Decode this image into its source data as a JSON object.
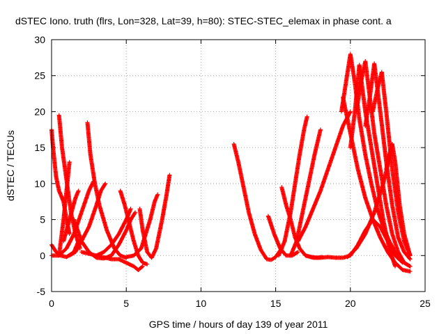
{
  "chart_data": {
    "type": "scatter",
    "title": "dSTEC Iono. truth (flrs, Lon=328, Lat=39, h=80): STEC-STEC_elemax in phase cont. a",
    "xlabel": "GPS time / hours of day 139 of year 2011",
    "ylabel": "dSTEC  / TECUs",
    "xlim": [
      0,
      25
    ],
    "ylim": [
      -5,
      30
    ],
    "xticks": [
      0,
      5,
      10,
      15,
      20,
      25
    ],
    "yticks": [
      -5,
      0,
      5,
      10,
      15,
      20,
      25,
      30
    ],
    "grid": true,
    "marker": "+",
    "color": "#ff0000",
    "series": [
      {
        "x": [
          0,
          0.1,
          0.3,
          0.5,
          0.8,
          1.0,
          1.2
        ],
        "y": [
          17.5,
          15,
          11,
          9,
          7.5,
          5,
          3
        ]
      },
      {
        "x": [
          0.0,
          0.3,
          0.6,
          1.0,
          1.5,
          1.8
        ],
        "y": [
          1.5,
          0.5,
          0,
          -0.2,
          0.5,
          2
        ]
      },
      {
        "x": [
          0.5,
          0.7,
          0.9,
          1.1,
          1.3,
          1.6,
          1.9
        ],
        "y": [
          19.5,
          15,
          12,
          9,
          6,
          3,
          1
        ]
      },
      {
        "x": [
          0.0,
          0.5,
          1.0,
          1.5,
          2.0,
          2.5,
          2.8
        ],
        "y": [
          0,
          0,
          1,
          3,
          6,
          9,
          10.3
        ]
      },
      {
        "x": [
          0.5,
          0.8,
          1.1,
          1.2
        ],
        "y": [
          0,
          5,
          11,
          13
        ]
      },
      {
        "x": [
          0.8,
          1.2,
          1.6,
          1.8
        ],
        "y": [
          2,
          5,
          8,
          9
        ]
      },
      {
        "x": [
          2.4,
          2.6,
          2.9,
          3.2,
          3.7,
          4.2,
          4.6,
          5.0
        ],
        "y": [
          18.5,
          14,
          10,
          7,
          3.5,
          1,
          0,
          -0.3
        ]
      },
      {
        "x": [
          1.2,
          1.6,
          2.0,
          2.5,
          3.0,
          3.3,
          3.6
        ],
        "y": [
          0,
          0.5,
          2,
          4,
          7,
          9,
          10
        ]
      },
      {
        "x": [
          1.5,
          2.0,
          2.5,
          3.0,
          3.5,
          4.0,
          4.5,
          5.0,
          5.3,
          5.6
        ],
        "y": [
          5,
          2,
          0.5,
          -0.3,
          -0.4,
          0,
          1.5,
          3.5,
          5,
          6
        ]
      },
      {
        "x": [
          4.6,
          4.9,
          5.2,
          5.5,
          5.8,
          6.1,
          6.4
        ],
        "y": [
          9,
          7,
          4.5,
          2,
          0,
          -1,
          -1.2
        ]
      },
      {
        "x": [
          3.0,
          3.5,
          4.0,
          4.5,
          5.0,
          5.3
        ],
        "y": [
          0,
          0.5,
          1.5,
          3,
          5,
          6.5
        ]
      },
      {
        "x": [
          2.0,
          3.0,
          4.0,
          4.5,
          5.0,
          5.5,
          5.8,
          6.1
        ],
        "y": [
          0.5,
          0,
          -0.5,
          -0.5,
          -1,
          -1.5,
          -2,
          -1.5
        ]
      },
      {
        "x": [
          5.0,
          5.5,
          6.0,
          6.3,
          6.6,
          6.9,
          7.1
        ],
        "y": [
          -0.2,
          0,
          1,
          3,
          5,
          7.5,
          8.5
        ]
      },
      {
        "x": [
          5.9,
          6.1,
          6.4,
          6.7,
          7.0,
          7.4,
          7.7,
          7.9
        ],
        "y": [
          6.5,
          3.5,
          0.5,
          -0.3,
          1,
          5,
          8.5,
          11.2
        ]
      },
      {
        "x": [
          12.2,
          12.5,
          12.8,
          13.2,
          13.6,
          14.0,
          14.4,
          14.7,
          15.0,
          15.4
        ],
        "y": [
          15.5,
          13,
          10,
          6,
          3,
          0.8,
          -0.5,
          -0.6,
          -0.2,
          1
        ]
      },
      {
        "x": [
          14.5,
          14.9,
          15.3,
          15.7,
          16.1,
          16.5
        ],
        "y": [
          5.5,
          3,
          1,
          0,
          0,
          0.5
        ]
      },
      {
        "x": [
          15.4,
          15.7,
          16.0,
          16.3,
          16.6,
          17.0,
          17.4,
          17.8,
          18.1
        ],
        "y": [
          9.5,
          7,
          5,
          2.5,
          1,
          0,
          -0.2,
          -0.3,
          -0.2
        ]
      },
      {
        "x": [
          15.2,
          15.6,
          16.0,
          16.3,
          16.6,
          16.9,
          17.1
        ],
        "y": [
          0,
          2,
          6,
          10,
          14,
          17.5,
          19.3
        ]
      },
      {
        "x": [
          16.0,
          16.4,
          16.8,
          17.2,
          17.6,
          18.0
        ],
        "y": [
          0,
          2,
          6,
          10,
          14,
          17.5
        ]
      },
      {
        "x": [
          16.5,
          17.0,
          17.5,
          18.0,
          18.5,
          19.0,
          19.5,
          20.0
        ],
        "y": [
          2,
          4,
          6.5,
          9,
          12,
          15,
          18,
          20
        ]
      },
      {
        "x": [
          17.0,
          17.5,
          18.0,
          18.5,
          19.0,
          19.5,
          20.0,
          20.5,
          21.0,
          21.5,
          22.0,
          22.5,
          23.0,
          23.5
        ],
        "y": [
          0,
          -0.3,
          -0.3,
          -0.2,
          -0.3,
          -0.3,
          0,
          1.5,
          3.5,
          5,
          4,
          2,
          0,
          -1
        ]
      },
      {
        "x": [
          19.4,
          19.7,
          20.0,
          20.3,
          20.6,
          21.0,
          21.4,
          21.8,
          22.2,
          22.6,
          23.0,
          23.6,
          24.0
        ],
        "y": [
          20,
          24,
          28,
          24,
          19,
          14,
          10,
          6.5,
          4,
          2,
          0.5,
          -1,
          -1.5
        ]
      },
      {
        "x": [
          19.5,
          20.0,
          20.5,
          21.0,
          21.5,
          22.0,
          22.5,
          23.0,
          23.5,
          24.0
        ],
        "y": [
          22,
          17,
          12,
          8,
          5,
          2.5,
          0.5,
          -1,
          -2,
          -2.2
        ]
      },
      {
        "x": [
          20.0,
          20.3,
          20.6,
          21.0,
          21.4,
          21.8,
          22.2,
          22.6,
          23.0
        ],
        "y": [
          15,
          20,
          26.5,
          20,
          15,
          10,
          5,
          1,
          -1.5
        ]
      },
      {
        "x": [
          20.4,
          20.7,
          21.0,
          21.3,
          21.6,
          22.0,
          22.4,
          22.8,
          23.2,
          23.6,
          24.0
        ],
        "y": [
          20,
          24,
          27,
          22,
          17,
          12,
          7,
          3,
          0.5,
          -1,
          -1.5
        ]
      },
      {
        "x": [
          21.0,
          21.3,
          21.6,
          22.0,
          22.4,
          22.8,
          23.2,
          23.6,
          24.0
        ],
        "y": [
          18,
          22,
          26.7,
          20,
          13,
          7,
          2.5,
          0.5,
          -0.5
        ]
      },
      {
        "x": [
          21.5,
          21.8,
          22.1,
          22.4,
          22.8,
          23.2,
          23.6,
          24.0
        ],
        "y": [
          20,
          23,
          25.5,
          20,
          12,
          6,
          2,
          0
        ]
      },
      {
        "x": [
          22.4,
          22.6,
          22.8,
          23.0,
          23.3,
          23.6,
          24.0
        ],
        "y": [
          12,
          14,
          15.5,
          13,
          7,
          3,
          0
        ]
      },
      {
        "x": [
          19.8,
          20.4,
          21.0,
          21.6,
          22.2,
          22.6,
          22.8
        ],
        "y": [
          -0.2,
          1,
          3,
          6,
          10,
          13.5,
          15.5
        ]
      }
    ]
  }
}
